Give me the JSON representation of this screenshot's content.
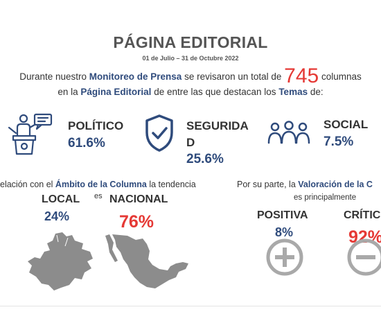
{
  "title": "PÁGINA EDITORIAL",
  "period": "01 de Julio – 31 de Octubre 2022",
  "intro": {
    "line1_a": "Durante nuestro ",
    "line1_hl": "Monitoreo de Prensa",
    "line1_b": " se revisaron un total de ",
    "total": "745",
    "line1_c": " columnas",
    "line2_a": "en la ",
    "line2_hl": "Página Editorial",
    "line2_b": " de entre las que destacan los ",
    "line2_hl2": "Temas",
    "line2_c": " de:"
  },
  "themes": [
    {
      "name": "POLÍTICO",
      "pct": "61.6%",
      "icon": "podium-speaker-icon"
    },
    {
      "name_line1": "SEGURIDA",
      "name_line2": "D",
      "pct": "25.6%",
      "icon": "shield-check-icon"
    },
    {
      "name": "SOCIAL",
      "pct": "7.5%",
      "icon": "people-group-icon"
    }
  ],
  "ambito": {
    "text_a": "elación con el ",
    "text_hl": "Ámbito de la Columna",
    "text_b": " la tendencia",
    "es": "es",
    "local_label": "LOCAL",
    "local_pct": "24%",
    "national_label": "NACIONAL",
    "national_pct": "76%"
  },
  "valoracion": {
    "text_a": "Por su parte, la ",
    "text_hl": "Valoración de la C",
    "text_line2": "es principalmente",
    "pos_label": "POSITIVA",
    "pos_pct": "8%",
    "crit_label": "CRÍTIC",
    "crit_pct": "92%"
  },
  "colors": {
    "navy": "#2f4b7c",
    "red": "#e53935",
    "map_gray": "#8c8c8c",
    "icon_gray": "#a9a9a9"
  }
}
